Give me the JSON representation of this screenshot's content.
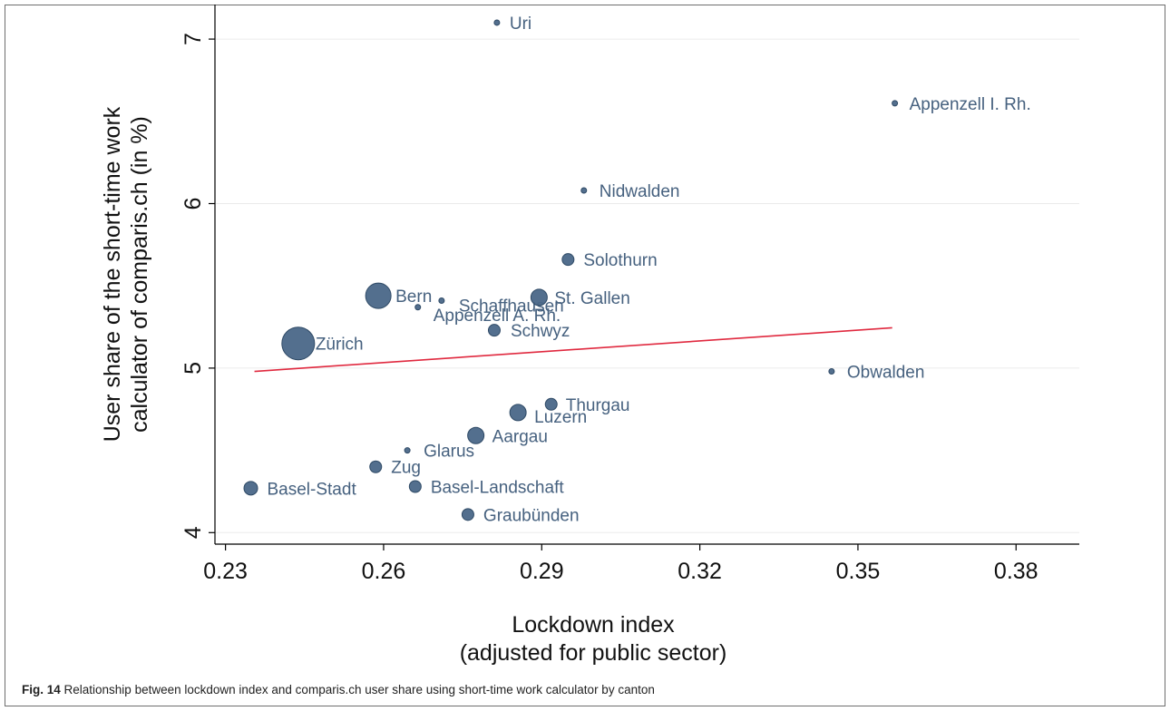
{
  "chart_data": {
    "type": "scatter",
    "xlabel": [
      "Lockdown index",
      "(adjusted for public sector)"
    ],
    "ylabel": [
      "User share of the short-time work",
      "calculator of comparis.ch (in %)"
    ],
    "xlim": [
      0.228,
      0.392
    ],
    "ylim": [
      3.93,
      7.21
    ],
    "xticks": [
      0.23,
      0.26,
      0.29,
      0.32,
      0.35,
      0.38
    ],
    "xtick_labels": [
      "0.23",
      "0.26",
      "0.29",
      "0.32",
      "0.35",
      "0.38"
    ],
    "yticks": [
      4,
      5,
      6,
      7
    ],
    "ytick_labels": [
      "4",
      "5",
      "6",
      "7"
    ],
    "grid": "horizontal",
    "marker_color": "#4a6788",
    "fit_line_color": "#e0293f",
    "fit_line": {
      "x": [
        0.2355,
        0.3565
      ],
      "y": [
        4.98,
        5.245
      ]
    },
    "points": [
      {
        "label": "Uri",
        "x": 0.2815,
        "y": 7.1,
        "size": "tiny"
      },
      {
        "label": "Appenzell I. Rh.",
        "x": 0.357,
        "y": 6.61,
        "size": "tiny"
      },
      {
        "label": "Nidwalden",
        "x": 0.298,
        "y": 6.08,
        "size": "tiny"
      },
      {
        "label": "Solothurn",
        "x": 0.295,
        "y": 5.66,
        "size": "small"
      },
      {
        "label": "Bern",
        "x": 0.259,
        "y": 5.44,
        "size": "large"
      },
      {
        "label": "Schaffhausen",
        "x": 0.271,
        "y": 5.41,
        "size": "tiny"
      },
      {
        "label": "St. Gallen",
        "x": 0.2895,
        "y": 5.43,
        "size": "medium"
      },
      {
        "label": "Appenzell A. Rh.",
        "x": 0.2665,
        "y": 5.37,
        "size": "tiny"
      },
      {
        "label": "Schwyz",
        "x": 0.281,
        "y": 5.23,
        "size": "small"
      },
      {
        "label": "Zürich",
        "x": 0.2438,
        "y": 5.15,
        "size": "xlarge"
      },
      {
        "label": "Obwalden",
        "x": 0.345,
        "y": 4.98,
        "size": "tiny"
      },
      {
        "label": "Thurgau",
        "x": 0.2918,
        "y": 4.78,
        "size": "small"
      },
      {
        "label": "Luzern",
        "x": 0.2855,
        "y": 4.73,
        "size": "medium"
      },
      {
        "label": "Aargau",
        "x": 0.2775,
        "y": 4.59,
        "size": "medium"
      },
      {
        "label": "Glarus",
        "x": 0.2645,
        "y": 4.5,
        "size": "tiny"
      },
      {
        "label": "Zug",
        "x": 0.2585,
        "y": 4.4,
        "size": "small"
      },
      {
        "label": "Basel-Stadt",
        "x": 0.2348,
        "y": 4.27,
        "size": "medium-small"
      },
      {
        "label": "Basel-Landschaft",
        "x": 0.266,
        "y": 4.28,
        "size": "small"
      },
      {
        "label": "Graubünden",
        "x": 0.276,
        "y": 4.11,
        "size": "small"
      }
    ]
  },
  "caption": {
    "label": "Fig. 14",
    "text": " Relationship between lockdown index and comparis.ch user share using short-time work calculator by canton"
  }
}
